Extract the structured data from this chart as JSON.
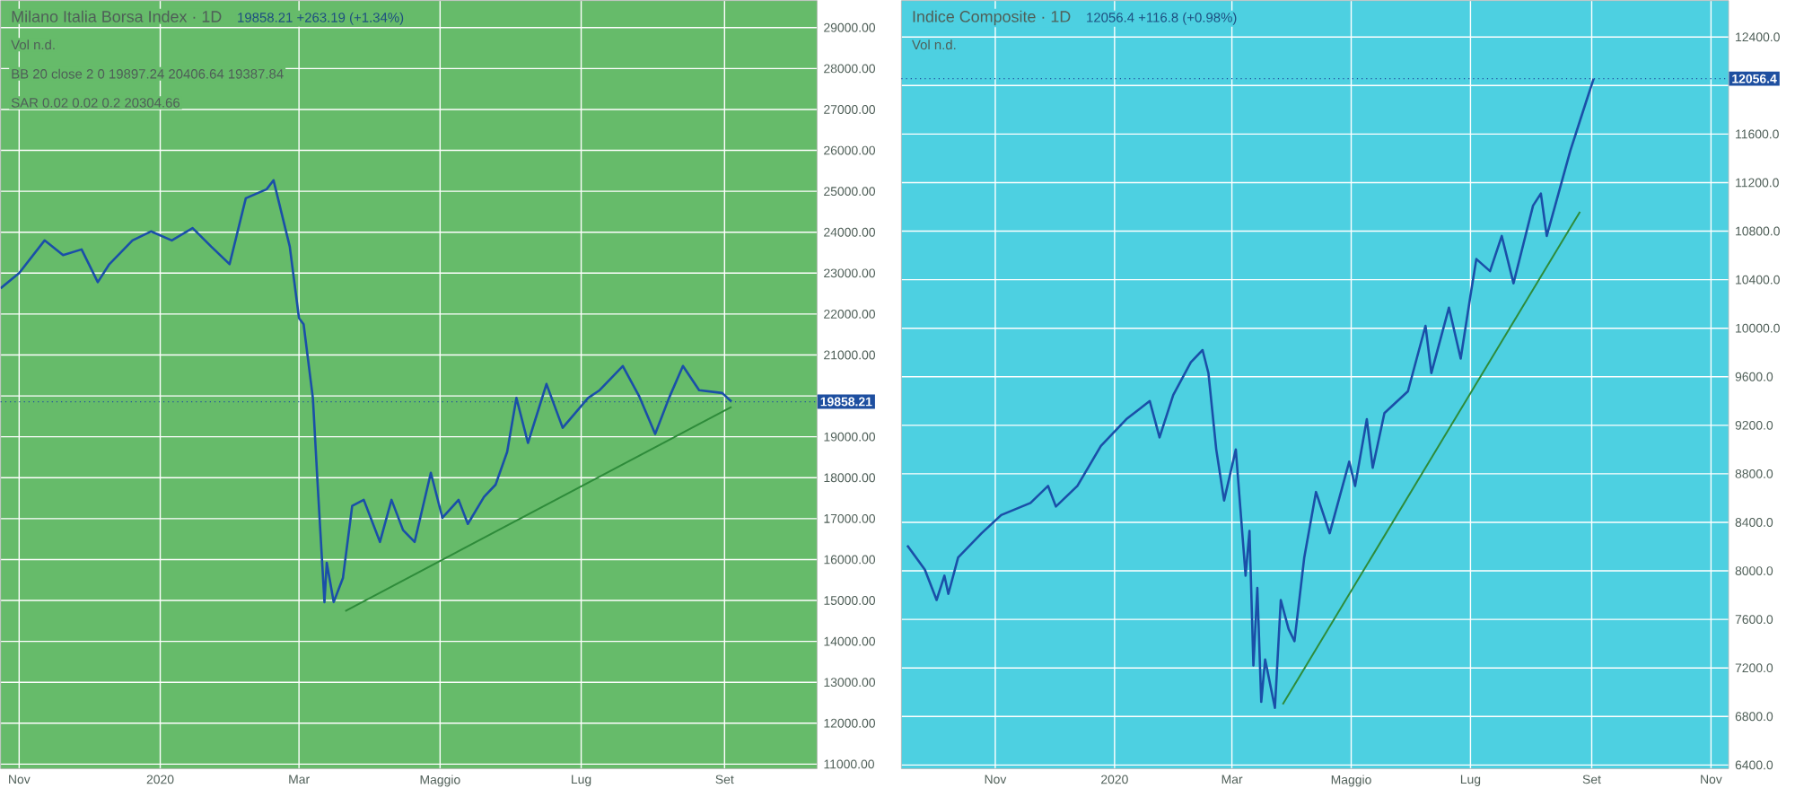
{
  "chart_data": [
    {
      "type": "line",
      "title": "Milano Italia Borsa Index · 1D",
      "annotations": [
        "19858.21 +263.19 (+1.34%)",
        "Vol n.d.",
        "BB 20 close 2 0 19897.24 20406.64 19387.84",
        "SAR 0.02 0.02 0.2 20304.66"
      ],
      "xlim": [
        "2019-10-24",
        "2020-10-11"
      ],
      "ylim": [
        10890,
        29660
      ],
      "xticks": [
        {
          "value": "2019-11-01",
          "label": "Nov"
        },
        {
          "value": "2020-01-01",
          "label": "2020"
        },
        {
          "value": "2020-03-01",
          "label": "Mar"
        },
        {
          "value": "2020-05-01",
          "label": "Maggio"
        },
        {
          "value": "2020-07-01",
          "label": "Lug"
        },
        {
          "value": "2020-09-01",
          "label": "Set"
        }
      ],
      "yticks": [
        {
          "value": 11000,
          "label": "11000.00"
        },
        {
          "value": 12000,
          "label": "12000.00"
        },
        {
          "value": 13000,
          "label": "13000.00"
        },
        {
          "value": 14000,
          "label": "14000.00"
        },
        {
          "value": 15000,
          "label": "15000.00"
        },
        {
          "value": 16000,
          "label": "16000.00"
        },
        {
          "value": 17000,
          "label": "17000.00"
        },
        {
          "value": 18000,
          "label": "18000.00"
        },
        {
          "value": 19000,
          "label": "19000.00"
        },
        {
          "value": 20000,
          "label": null
        },
        {
          "value": 21000,
          "label": "21000.00"
        },
        {
          "value": 22000,
          "label": "22000.00"
        },
        {
          "value": 23000,
          "label": "23000.00"
        },
        {
          "value": 24000,
          "label": "24000.00"
        },
        {
          "value": 25000,
          "label": "25000.00"
        },
        {
          "value": 26000,
          "label": "26000.00"
        },
        {
          "value": 27000,
          "label": "27000.00"
        },
        {
          "value": 28000,
          "label": "28000.00"
        },
        {
          "value": 29000,
          "label": "29000.00"
        }
      ],
      "grid": true,
      "ref_lines": [
        {
          "axis": "y",
          "value": 19858.21,
          "label": "19858.21",
          "color": "#1e4fa0",
          "line_style": "dotted"
        }
      ],
      "series": [
        {
          "color": "#1a4fa8",
          "x": [
            "2019-10-24",
            "2019-11-01",
            "2019-11-12",
            "2019-11-20",
            "2019-11-28",
            "2019-12-05",
            "2019-12-10",
            "2019-12-20",
            "2019-12-28",
            "2020-01-06",
            "2020-01-15",
            "2020-01-23",
            "2020-01-31",
            "2020-02-07",
            "2020-02-16",
            "2020-02-19",
            "2020-02-26",
            "2020-03-01",
            "2020-03-03",
            "2020-03-07",
            "2020-03-09",
            "2020-03-12",
            "2020-03-13",
            "2020-03-16",
            "2020-03-20",
            "2020-03-24",
            "2020-03-29",
            "2020-04-05",
            "2020-04-10",
            "2020-04-15",
            "2020-04-20",
            "2020-04-27",
            "2020-05-02",
            "2020-05-09",
            "2020-05-13",
            "2020-05-20",
            "2020-05-25",
            "2020-05-30",
            "2020-06-03",
            "2020-06-08",
            "2020-06-16",
            "2020-06-23",
            "2020-07-04",
            "2020-07-09",
            "2020-07-19",
            "2020-07-26",
            "2020-08-02",
            "2020-08-08",
            "2020-08-14",
            "2020-08-21",
            "2020-08-31",
            "2020-09-04"
          ],
          "values": [
            22630,
            23000,
            23800,
            23440,
            23580,
            22780,
            23220,
            23800,
            24020,
            23800,
            24100,
            23650,
            23220,
            24830,
            25050,
            25270,
            23650,
            21900,
            21750,
            19950,
            17900,
            14960,
            15920,
            14960,
            15550,
            17310,
            17460,
            16430,
            17460,
            16720,
            16430,
            18120,
            17020,
            17460,
            16870,
            17530,
            17830,
            18630,
            19950,
            18850,
            20290,
            19220,
            19950,
            20140,
            20730,
            20000,
            19070,
            19950,
            20730,
            20140,
            20070,
            19858.21
          ]
        },
        {
          "type": "line",
          "color": "#2e8b3a",
          "x": [
            "2020-03-21",
            "2020-09-04"
          ],
          "values": [
            14740,
            19730
          ]
        }
      ]
    },
    {
      "type": "line",
      "title": "Indice Composite · 1D",
      "annotations": [
        "12056.4 +116.8 (+0.98%)",
        "Vol n.d."
      ],
      "xlim": [
        "2019-09-14",
        "2020-11-10"
      ],
      "ylim": [
        6370,
        12700
      ],
      "xticks": [
        {
          "value": "2019-11-01",
          "label": "Nov"
        },
        {
          "value": "2020-01-01",
          "label": "2020"
        },
        {
          "value": "2020-03-01",
          "label": "Mar"
        },
        {
          "value": "2020-05-01",
          "label": "Maggio"
        },
        {
          "value": "2020-07-01",
          "label": "Lug"
        },
        {
          "value": "2020-09-01",
          "label": "Set"
        },
        {
          "value": "2020-11-01",
          "label": "Nov"
        }
      ],
      "yticks": [
        {
          "value": 6400,
          "label": "6400.0"
        },
        {
          "value": 6800,
          "label": "6800.0"
        },
        {
          "value": 7200,
          "label": "7200.0"
        },
        {
          "value": 7600,
          "label": "7600.0"
        },
        {
          "value": 8000,
          "label": "8000.0"
        },
        {
          "value": 8400,
          "label": "8400.0"
        },
        {
          "value": 8800,
          "label": "8800.0"
        },
        {
          "value": 9200,
          "label": "9200.0"
        },
        {
          "value": 9600,
          "label": "9600.0"
        },
        {
          "value": 10000,
          "label": "10000.0"
        },
        {
          "value": 10400,
          "label": "10400.0"
        },
        {
          "value": 10800,
          "label": "10800.0"
        },
        {
          "value": 11200,
          "label": "11200.0"
        },
        {
          "value": 11600,
          "label": "11600.0"
        },
        {
          "value": 12000,
          "label": null
        },
        {
          "value": 12400,
          "label": "12400.0"
        }
      ],
      "grid": true,
      "ref_lines": [
        {
          "axis": "y",
          "value": 12056.4,
          "label": "12056.4",
          "color": "#1e4fa0",
          "line_style": "dotted"
        }
      ],
      "series": [
        {
          "color": "#1a4fa8",
          "x": [
            "2019-09-17",
            "2019-09-26",
            "2019-10-02",
            "2019-10-06",
            "2019-10-08",
            "2019-10-13",
            "2019-10-25",
            "2019-11-04",
            "2019-11-19",
            "2019-11-28",
            "2019-12-02",
            "2019-12-13",
            "2019-12-25",
            "2020-01-07",
            "2020-01-19",
            "2020-01-24",
            "2020-01-31",
            "2020-02-09",
            "2020-02-15",
            "2020-02-18",
            "2020-02-22",
            "2020-02-26",
            "2020-03-03",
            "2020-03-08",
            "2020-03-10",
            "2020-03-12",
            "2020-03-14",
            "2020-03-16",
            "2020-03-18",
            "2020-03-23",
            "2020-03-26",
            "2020-03-30",
            "2020-04-02",
            "2020-04-07",
            "2020-04-13",
            "2020-04-20",
            "2020-04-30",
            "2020-05-03",
            "2020-05-09",
            "2020-05-12",
            "2020-05-18",
            "2020-05-30",
            "2020-06-08",
            "2020-06-11",
            "2020-06-20",
            "2020-06-26",
            "2020-07-01",
            "2020-07-04",
            "2020-07-11",
            "2020-07-17",
            "2020-07-23",
            "2020-08-02",
            "2020-08-06",
            "2020-08-09",
            "2020-08-15",
            "2020-08-21",
            "2020-08-26",
            "2020-08-29",
            "2020-09-02"
          ],
          "values": [
            8210,
            8010,
            7760,
            7960,
            7810,
            8110,
            8310,
            8460,
            8560,
            8700,
            8530,
            8700,
            9030,
            9250,
            9400,
            9100,
            9450,
            9720,
            9820,
            9630,
            9000,
            8580,
            9000,
            7960,
            8330,
            7220,
            7860,
            6920,
            7270,
            6870,
            7760,
            7520,
            7420,
            8110,
            8650,
            8310,
            8900,
            8700,
            9250,
            8850,
            9300,
            9480,
            10020,
            9630,
            10170,
            9750,
            10270,
            10570,
            10470,
            10760,
            10370,
            11010,
            11110,
            10760,
            11110,
            11460,
            11710,
            11860,
            12056.4
          ]
        },
        {
          "type": "line",
          "color": "#2e8b3a",
          "x": [
            "2020-03-27",
            "2020-08-26"
          ],
          "values": [
            6900,
            10960
          ]
        }
      ]
    }
  ]
}
